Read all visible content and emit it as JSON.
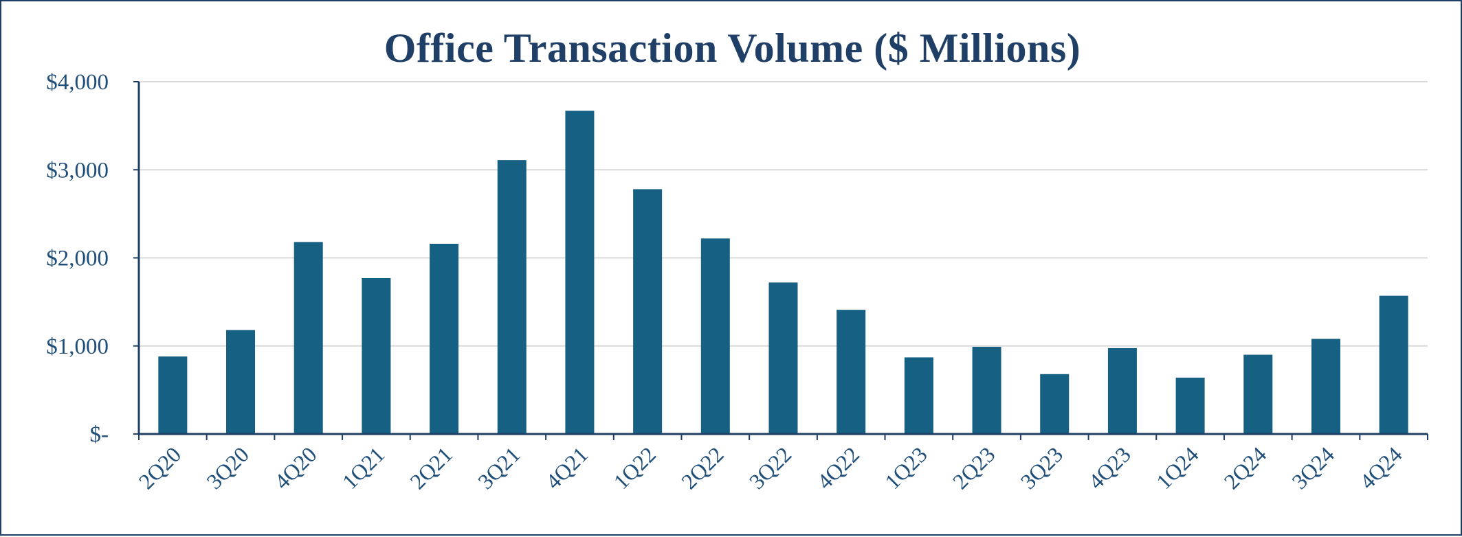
{
  "chart_data": {
    "type": "bar",
    "title": "Office Transaction Volume ($ Millions)",
    "xlabel": "",
    "ylabel": "",
    "categories": [
      "2Q20",
      "3Q20",
      "4Q20",
      "1Q21",
      "2Q21",
      "3Q21",
      "4Q21",
      "1Q22",
      "2Q22",
      "3Q22",
      "4Q22",
      "1Q23",
      "2Q23",
      "3Q23",
      "4Q23",
      "1Q24",
      "2Q24",
      "3Q24",
      "4Q24"
    ],
    "values": [
      880,
      1180,
      2180,
      1770,
      2160,
      3110,
      3670,
      2780,
      2220,
      1720,
      1410,
      870,
      990,
      680,
      975,
      640,
      900,
      1080,
      1570
    ],
    "ylim": [
      0,
      4000
    ],
    "yticks": [
      {
        "value": 0,
        "label": "$-"
      },
      {
        "value": 1000,
        "label": "$1,000"
      },
      {
        "value": 2000,
        "label": "$2,000"
      },
      {
        "value": 3000,
        "label": "$3,000"
      },
      {
        "value": 4000,
        "label": "$4,000"
      }
    ],
    "grid": true,
    "legend": "none",
    "colors": {
      "bar": "#166083",
      "axis": "#1f3f66",
      "grid": "#d9d9d9",
      "text": "#1f4e79"
    }
  }
}
